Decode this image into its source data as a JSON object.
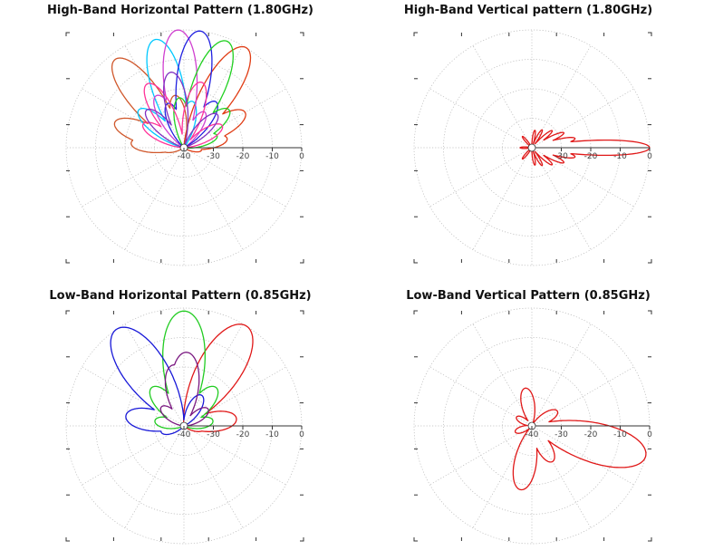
{
  "chart_data": [
    {
      "type": "polar",
      "title": "High-Band Horizontal Pattern (1.80GHz)",
      "radial_ticks": [
        "-40",
        "-30",
        "-20",
        "-10",
        "0"
      ],
      "rlim": [
        -40,
        0
      ],
      "grid": true,
      "series": [
        {
          "color": "#e03c14",
          "lobes": [
            {
              "angle": 58,
              "gain": 0
            },
            {
              "angle": 30,
              "gain": -16
            },
            {
              "angle": 12,
              "gain": -25
            },
            {
              "angle": -8,
              "gain": -34
            }
          ]
        },
        {
          "color": "#d0582c",
          "lobes": [
            {
              "angle": 128,
              "gain": -2
            },
            {
              "angle": 160,
              "gain": -15
            },
            {
              "angle": 175,
              "gain": -22
            },
            {
              "angle": 100,
              "gain": -22
            },
            {
              "angle": -172,
              "gain": -33
            }
          ]
        },
        {
          "color": "#00c8ff",
          "lobes": [
            {
              "angle": 105,
              "gain": -2
            },
            {
              "angle": 140,
              "gain": -20
            },
            {
              "angle": 80,
              "gain": -24
            }
          ]
        },
        {
          "color": "#d040d0",
          "lobes": [
            {
              "angle": 93,
              "gain": 0
            },
            {
              "angle": 118,
              "gain": -20
            },
            {
              "angle": 60,
              "gain": -26
            }
          ]
        },
        {
          "color": "#2020e0",
          "lobes": [
            {
              "angle": 82,
              "gain": 0
            },
            {
              "angle": 55,
              "gain": -21
            },
            {
              "angle": 110,
              "gain": -24
            }
          ]
        },
        {
          "color": "#20d020",
          "lobes": [
            {
              "angle": 68,
              "gain": -1
            },
            {
              "angle": 40,
              "gain": -20
            },
            {
              "angle": 95,
              "gain": -23
            },
            {
              "angle": 20,
              "gain": -28
            }
          ]
        },
        {
          "color": "#ff3399",
          "lobes": [
            {
              "angle": 120,
              "gain": -15
            },
            {
              "angle": 75,
              "gain": -17
            },
            {
              "angle": 150,
              "gain": -24
            },
            {
              "angle": 30,
              "gain": -25
            }
          ]
        },
        {
          "color": "#8030c0",
          "lobes": [
            {
              "angle": 100,
              "gain": -14
            },
            {
              "angle": 135,
              "gain": -22
            },
            {
              "angle": 45,
              "gain": -24
            }
          ]
        }
      ]
    },
    {
      "type": "polar",
      "title": "High-Band Vertical pattern (1.80GHz)",
      "radial_ticks": [
        "-30",
        "-20",
        "-10",
        "0"
      ],
      "rlim": [
        -40,
        0
      ],
      "grid": true,
      "series": [
        {
          "color": "#e01818",
          "lobes": [
            {
              "angle": 0,
              "gain": 0
            },
            {
              "angle": 12,
              "gain": -25
            },
            {
              "angle": -12,
              "gain": -25
            },
            {
              "angle": 25,
              "gain": -28
            },
            {
              "angle": -25,
              "gain": -28
            },
            {
              "angle": 40,
              "gain": -31
            },
            {
              "angle": -40,
              "gain": -31
            },
            {
              "angle": 60,
              "gain": -33
            },
            {
              "angle": -60,
              "gain": -33
            },
            {
              "angle": 80,
              "gain": -34
            },
            {
              "angle": -80,
              "gain": -34
            },
            {
              "angle": 130,
              "gain": -35
            },
            {
              "angle": -130,
              "gain": -35
            },
            {
              "angle": 180,
              "gain": -36
            }
          ]
        }
      ]
    },
    {
      "type": "polar",
      "title": "Low-Band Horizontal Pattern (0.85GHz)",
      "radial_ticks": [
        "-40",
        "-30",
        "-20",
        "-10",
        "0"
      ],
      "rlim": [
        -40,
        0
      ],
      "grid": true,
      "series": [
        {
          "color": "#e01818",
          "lobes": [
            {
              "angle": 58,
              "gain": 0
            },
            {
              "angle": 8,
              "gain": -22
            },
            {
              "angle": -8,
              "gain": -33
            }
          ]
        },
        {
          "color": "#22cc22",
          "lobes": [
            {
              "angle": 90,
              "gain": -1
            },
            {
              "angle": 130,
              "gain": -23
            },
            {
              "angle": 50,
              "gain": -23
            },
            {
              "angle": 170,
              "gain": -30
            },
            {
              "angle": 10,
              "gain": -30
            }
          ]
        },
        {
          "color": "#1818d8",
          "lobes": [
            {
              "angle": 125,
              "gain": 0
            },
            {
              "angle": 170,
              "gain": -20
            },
            {
              "angle": -165,
              "gain": -32
            },
            {
              "angle": 60,
              "gain": -28
            }
          ]
        },
        {
          "color": "#7a1880",
          "lobes": [
            {
              "angle": 88,
              "gain": -15
            },
            {
              "angle": 100,
              "gain": -19
            },
            {
              "angle": 140,
              "gain": -30
            },
            {
              "angle": 35,
              "gain": -30
            }
          ]
        }
      ]
    },
    {
      "type": "polar",
      "title": "Low-Band Vertical Pattern (0.85GHz)",
      "radial_ticks": [
        "-40",
        "-30",
        "-20",
        "-10",
        "0"
      ],
      "rlim": [
        -40,
        0
      ],
      "grid": true,
      "series": [
        {
          "color": "#e01818",
          "lobes": [
            {
              "angle": -15,
              "gain": 0
            },
            {
              "angle": 100,
              "gain": -27
            },
            {
              "angle": -100,
              "gain": -18
            },
            {
              "angle": 30,
              "gain": -30
            },
            {
              "angle": -60,
              "gain": -26
            },
            {
              "angle": 150,
              "gain": -34
            },
            {
              "angle": 200,
              "gain": -34
            }
          ]
        }
      ]
    }
  ]
}
